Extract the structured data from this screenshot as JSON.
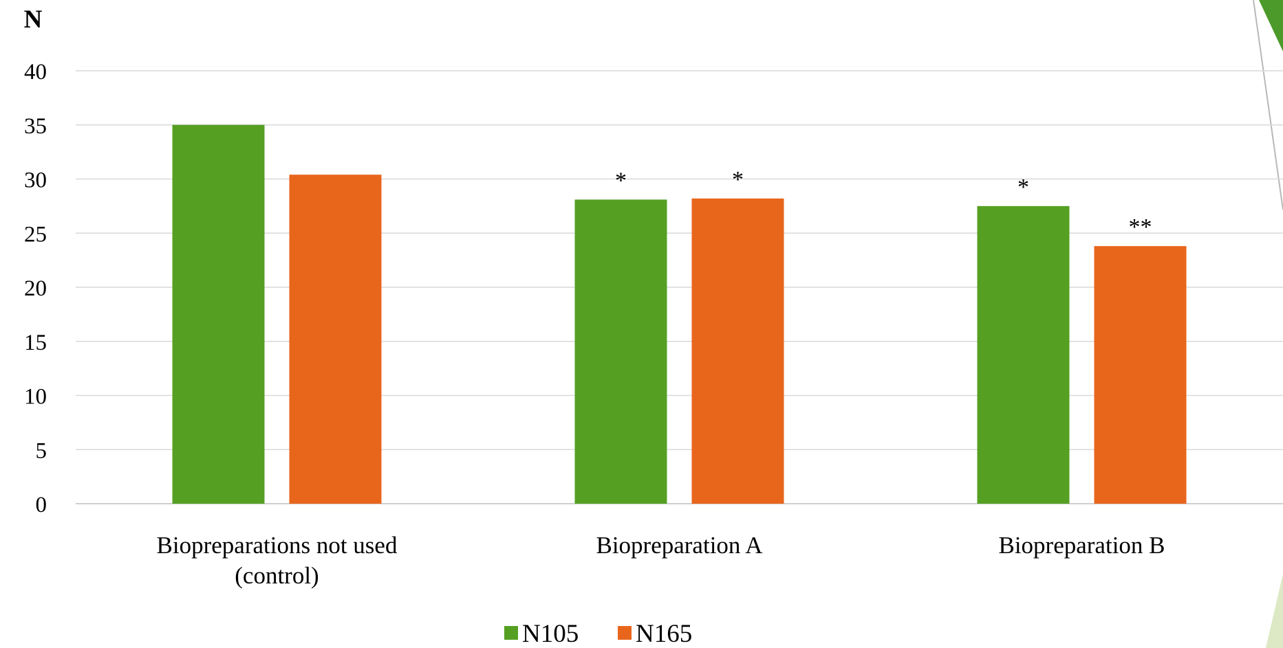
{
  "chart_data": {
    "type": "bar",
    "ylabel": "N",
    "xlabel": "",
    "title": "",
    "ylim": [
      0,
      40
    ],
    "y_ticks": [
      0,
      5,
      10,
      15,
      20,
      25,
      30,
      35,
      40
    ],
    "grid": true,
    "legend_position": "bottom",
    "categories": [
      [
        "Biopreparations not used",
        "(control)"
      ],
      [
        "Biopreparation A"
      ],
      [
        "Biopreparation B"
      ]
    ],
    "series": [
      {
        "name": "N105",
        "color": "#55A023",
        "values": [
          35.0,
          28.1,
          27.5
        ],
        "annotations": [
          "",
          "*",
          "*"
        ]
      },
      {
        "name": "N165",
        "color": "#E8661C",
        "values": [
          30.4,
          28.2,
          23.8
        ],
        "annotations": [
          "",
          "*",
          "**"
        ]
      }
    ]
  },
  "decor": {
    "accent_dark": "#4C9A2A",
    "accent_light": "#DCE9C4"
  }
}
